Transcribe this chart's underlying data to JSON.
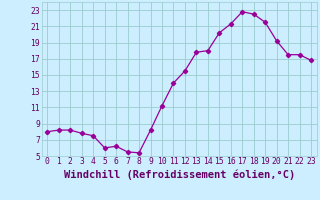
{
  "x": [
    0,
    1,
    2,
    3,
    4,
    5,
    6,
    7,
    8,
    9,
    10,
    11,
    12,
    13,
    14,
    15,
    16,
    17,
    18,
    19,
    20,
    21,
    22,
    23
  ],
  "y": [
    8.0,
    8.2,
    8.2,
    7.8,
    7.5,
    6.0,
    6.2,
    5.5,
    5.4,
    8.2,
    11.2,
    14.0,
    15.5,
    17.8,
    18.0,
    20.2,
    21.3,
    22.8,
    22.5,
    21.5,
    19.2,
    17.5,
    17.5,
    16.8
  ],
  "line_color": "#990099",
  "marker": "D",
  "marker_size": 2.2,
  "bg_color": "#cceeff",
  "grid_color": "#99cccc",
  "xlabel": "Windchill (Refroidissement éolien,°C)",
  "xlim": [
    -0.5,
    23.5
  ],
  "ylim": [
    5,
    24
  ],
  "yticks": [
    5,
    7,
    9,
    11,
    13,
    15,
    17,
    19,
    21,
    23
  ],
  "xticks": [
    0,
    1,
    2,
    3,
    4,
    5,
    6,
    7,
    8,
    9,
    10,
    11,
    12,
    13,
    14,
    15,
    16,
    17,
    18,
    19,
    20,
    21,
    22,
    23
  ],
  "tick_label_fontsize": 5.8,
  "xlabel_fontsize": 7.5,
  "axis_label_color": "#660066"
}
